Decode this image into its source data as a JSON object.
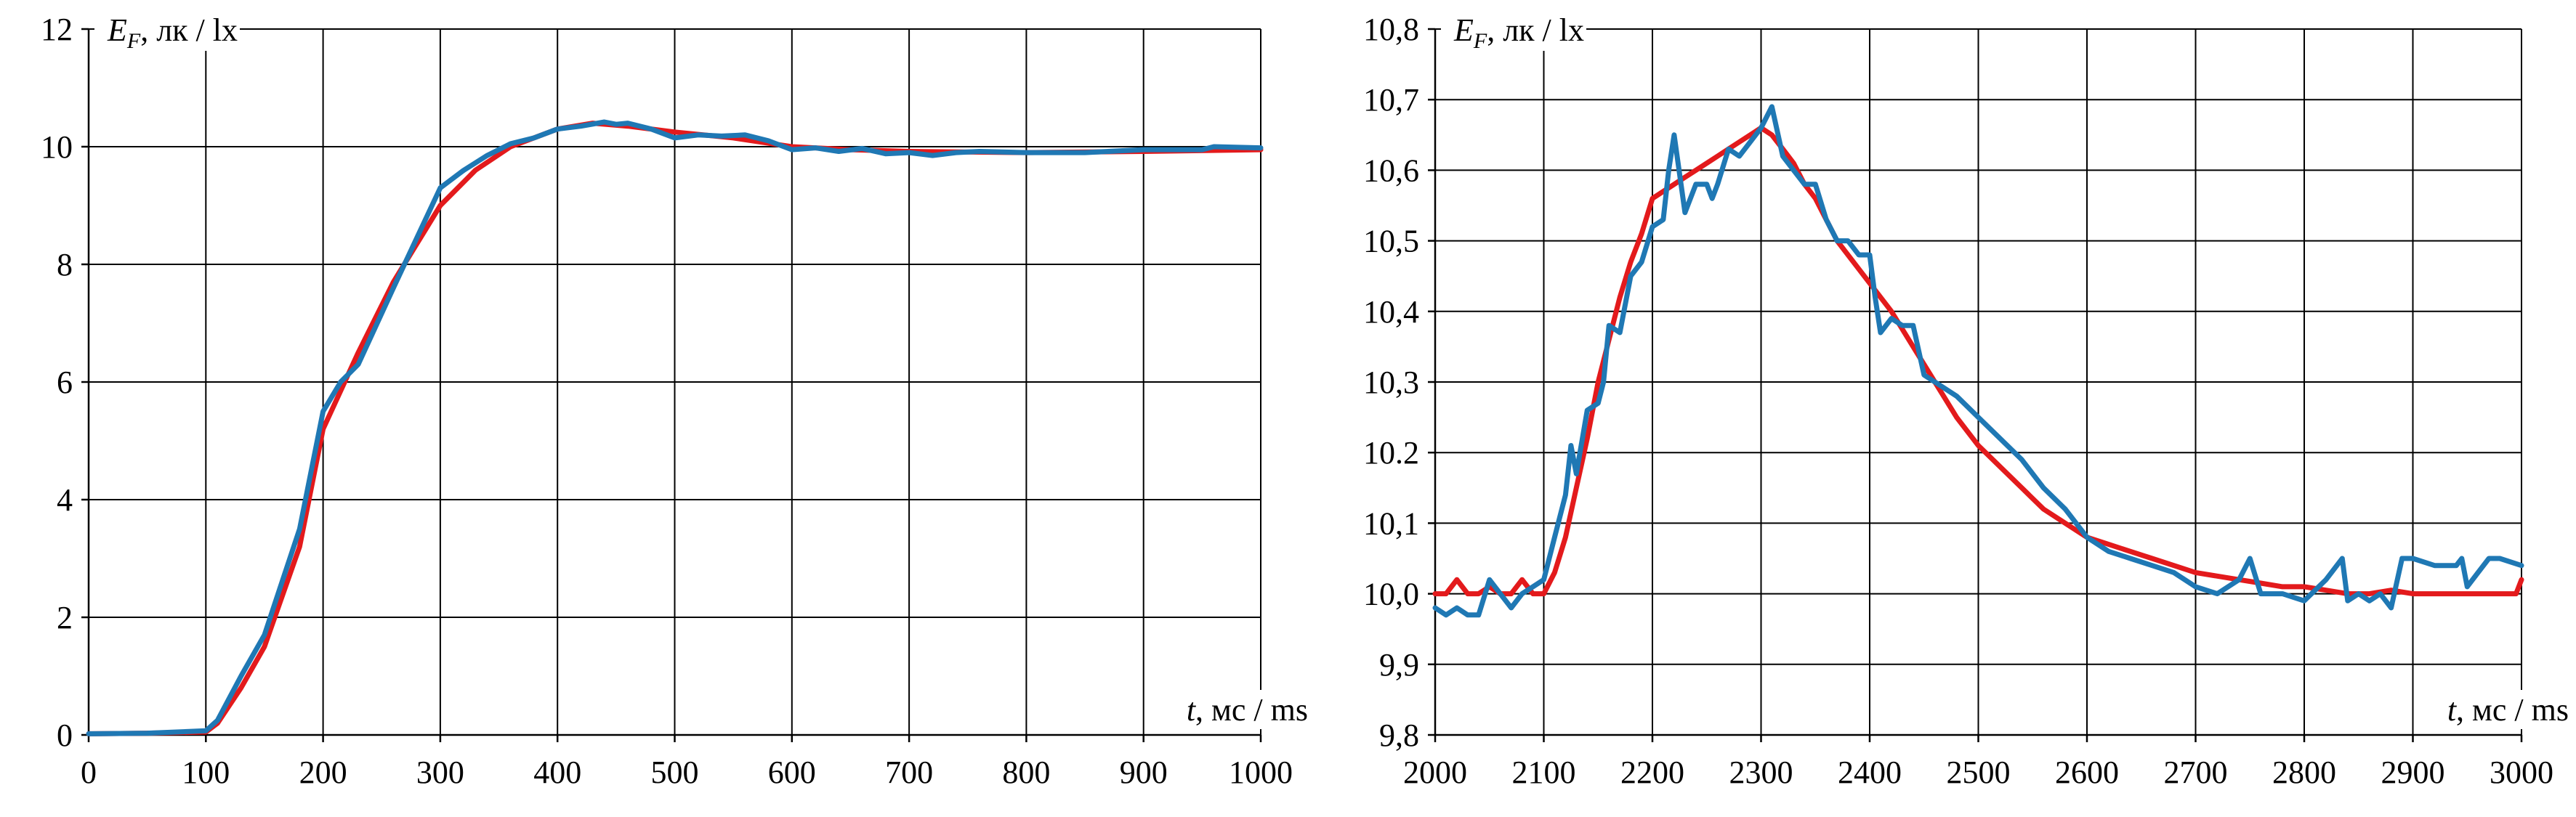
{
  "colors": {
    "red": "#e31a1c",
    "blue": "#1f78b4"
  },
  "chart_data": [
    {
      "type": "line",
      "ylabel_var": "E",
      "ylabel_sub": "F",
      "ylabel_rest": ", лк / lx",
      "xlabel_var": "t",
      "xlabel_rest": ", мс / ms",
      "xlim": [
        0,
        1000
      ],
      "ylim": [
        0,
        12
      ],
      "xticks": [
        0,
        100,
        200,
        300,
        400,
        500,
        600,
        700,
        800,
        900,
        1000
      ],
      "xtick_labels": [
        "0",
        "100",
        "200",
        "300",
        "400",
        "500",
        "600",
        "700",
        "800",
        "900",
        "1000"
      ],
      "yticks": [
        0,
        2,
        4,
        6,
        8,
        10,
        12
      ],
      "ytick_labels": [
        "0",
        "2",
        "4",
        "6",
        "8",
        "10",
        "12"
      ],
      "grid": true,
      "series": [
        {
          "color": "#e31a1c",
          "x": [
            0,
            50,
            100,
            110,
            130,
            150,
            180,
            200,
            230,
            260,
            300,
            330,
            360,
            400,
            430,
            460,
            500,
            550,
            600,
            650,
            700,
            800,
            900,
            1000
          ],
          "y": [
            0.02,
            0.03,
            0.05,
            0.2,
            0.8,
            1.5,
            3.2,
            5.2,
            6.5,
            7.7,
            9.0,
            9.6,
            10.0,
            10.3,
            10.4,
            10.35,
            10.25,
            10.15,
            10.0,
            9.95,
            9.92,
            9.9,
            9.92,
            9.95
          ]
        },
        {
          "color": "#1f78b4",
          "x": [
            0,
            50,
            100,
            110,
            130,
            150,
            180,
            200,
            215,
            230,
            260,
            300,
            320,
            340,
            360,
            380,
            400,
            420,
            440,
            450,
            460,
            480,
            500,
            520,
            540,
            560,
            580,
            600,
            620,
            640,
            660,
            680,
            700,
            720,
            740,
            760,
            800,
            850,
            900,
            950,
            960,
            1000
          ],
          "y": [
            0.02,
            0.03,
            0.07,
            0.25,
            1.0,
            1.7,
            3.5,
            5.5,
            6.0,
            6.3,
            7.6,
            9.3,
            9.6,
            9.85,
            10.05,
            10.15,
            10.3,
            10.35,
            10.42,
            10.38,
            10.4,
            10.3,
            10.15,
            10.2,
            10.18,
            10.2,
            10.1,
            9.95,
            9.98,
            9.92,
            9.97,
            9.88,
            9.9,
            9.85,
            9.9,
            9.92,
            9.9,
            9.9,
            9.95,
            9.95,
            10.0,
            9.98
          ]
        }
      ]
    },
    {
      "type": "line",
      "ylabel_var": "E",
      "ylabel_sub": "F",
      "ylabel_rest": ", лк / lx",
      "xlabel_var": "t",
      "xlabel_rest": ", мс / ms",
      "xlim": [
        2000,
        3000
      ],
      "ylim": [
        9.8,
        10.8
      ],
      "xticks": [
        2000,
        2100,
        2200,
        2300,
        2400,
        2500,
        2600,
        2700,
        2800,
        2900,
        3000
      ],
      "xtick_labels": [
        "2000",
        "2100",
        "2200",
        "2300",
        "2400",
        "2500",
        "2600",
        "2700",
        "2800",
        "2900",
        "3000"
      ],
      "yticks": [
        9.8,
        9.9,
        10.0,
        10.1,
        10.2,
        10.3,
        10.4,
        10.5,
        10.6,
        10.7,
        10.8
      ],
      "ytick_labels": [
        "9,8",
        "9,9",
        "10,0",
        "10,1",
        "10.2",
        "10,3",
        "10,4",
        "10,5",
        "10,6",
        "10,7",
        "10,8"
      ],
      "grid": true,
      "series": [
        {
          "color": "#e31a1c",
          "x": [
            2000,
            2010,
            2020,
            2030,
            2040,
            2050,
            2060,
            2070,
            2080,
            2090,
            2100,
            2110,
            2120,
            2130,
            2140,
            2150,
            2160,
            2170,
            2180,
            2190,
            2200,
            2210,
            2220,
            2230,
            2240,
            2250,
            2260,
            2270,
            2280,
            2290,
            2300,
            2310,
            2320,
            2330,
            2340,
            2350,
            2360,
            2370,
            2380,
            2390,
            2400,
            2420,
            2440,
            2460,
            2480,
            2500,
            2520,
            2540,
            2560,
            2580,
            2600,
            2620,
            2640,
            2660,
            2680,
            2700,
            2720,
            2740,
            2760,
            2780,
            2800,
            2820,
            2840,
            2860,
            2880,
            2900,
            2920,
            2940,
            2960,
            2980,
            2995,
            3000
          ],
          "y": [
            10.0,
            10.0,
            10.02,
            10.0,
            10.0,
            10.01,
            10.0,
            10.0,
            10.02,
            10.0,
            10.0,
            10.03,
            10.08,
            10.15,
            10.22,
            10.3,
            10.36,
            10.42,
            10.47,
            10.51,
            10.56,
            10.57,
            10.58,
            10.59,
            10.6,
            10.61,
            10.62,
            10.63,
            10.64,
            10.65,
            10.66,
            10.65,
            10.63,
            10.61,
            10.58,
            10.56,
            10.53,
            10.5,
            10.48,
            10.46,
            10.44,
            10.4,
            10.35,
            10.3,
            10.25,
            10.21,
            10.18,
            10.15,
            10.12,
            10.1,
            10.08,
            10.07,
            10.06,
            10.05,
            10.04,
            10.03,
            10.025,
            10.02,
            10.015,
            10.01,
            10.01,
            10.005,
            10.0,
            10.0,
            10.005,
            10.0,
            10.0,
            10.0,
            10.0,
            10.0,
            10.0,
            10.02
          ]
        },
        {
          "color": "#1f78b4",
          "x": [
            2000,
            2010,
            2020,
            2030,
            2040,
            2050,
            2060,
            2070,
            2080,
            2090,
            2100,
            2110,
            2120,
            2125,
            2130,
            2140,
            2150,
            2155,
            2160,
            2170,
            2180,
            2190,
            2200,
            2210,
            2215,
            2220,
            2230,
            2240,
            2250,
            2255,
            2260,
            2270,
            2280,
            2290,
            2300,
            2310,
            2320,
            2330,
            2340,
            2350,
            2360,
            2370,
            2380,
            2390,
            2400,
            2405,
            2410,
            2420,
            2430,
            2440,
            2450,
            2460,
            2480,
            2500,
            2520,
            2540,
            2560,
            2580,
            2600,
            2620,
            2640,
            2660,
            2680,
            2700,
            2720,
            2740,
            2750,
            2760,
            2780,
            2800,
            2820,
            2835,
            2840,
            2850,
            2860,
            2870,
            2880,
            2890,
            2900,
            2920,
            2940,
            2945,
            2950,
            2960,
            2970,
            2980,
            3000
          ],
          "y": [
            9.98,
            9.97,
            9.98,
            9.97,
            9.97,
            10.02,
            10.0,
            9.98,
            10.0,
            10.01,
            10.02,
            10.08,
            10.14,
            10.21,
            10.17,
            10.26,
            10.27,
            10.3,
            10.38,
            10.37,
            10.45,
            10.47,
            10.52,
            10.53,
            10.6,
            10.65,
            10.54,
            10.58,
            10.58,
            10.56,
            10.58,
            10.63,
            10.62,
            10.64,
            10.66,
            10.69,
            10.62,
            10.6,
            10.58,
            10.58,
            10.53,
            10.5,
            10.5,
            10.48,
            10.48,
            10.42,
            10.37,
            10.39,
            10.38,
            10.38,
            10.31,
            10.3,
            10.28,
            10.25,
            10.22,
            10.19,
            10.15,
            10.12,
            10.08,
            10.06,
            10.05,
            10.04,
            10.03,
            10.01,
            10.0,
            10.02,
            10.05,
            10.0,
            10.0,
            9.99,
            10.02,
            10.05,
            9.99,
            10.0,
            9.99,
            10.0,
            9.98,
            10.05,
            10.05,
            10.04,
            10.04,
            10.05,
            10.01,
            10.03,
            10.05,
            10.05,
            10.04
          ]
        }
      ]
    }
  ]
}
